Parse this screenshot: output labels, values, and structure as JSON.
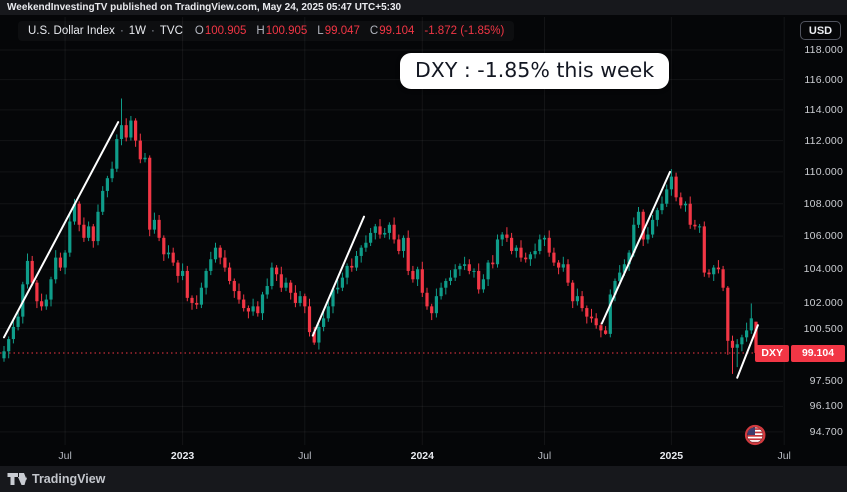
{
  "attribution": "WeekendInvestingTV published on TradingView.com, May 24, 2025 05:47 UTC+5:30",
  "legend": {
    "symbol": "U.S. Dollar Index",
    "sep": "·",
    "interval": "1W",
    "exchange": "TVC",
    "ohlc": [
      [
        "O",
        "100.905"
      ],
      [
        "H",
        "100.905"
      ],
      [
        "L",
        "99.047"
      ],
      [
        "C",
        "99.104"
      ]
    ],
    "change": "-1.872 (-1.85%)"
  },
  "currency_button": "USD",
  "annotation_text": "DXY : -1.85% this week",
  "price_tag": {
    "label": "DXY",
    "value": "99.104"
  },
  "footer_brand": "TradingView",
  "colors": {
    "up": "#0f9d8a",
    "down": "#f23645",
    "trendline": "#ffffff",
    "grid": "rgba(255,255,255,0.06)",
    "last_price_line": "#f23645",
    "axis_text": "#ccced3"
  },
  "chart_data": {
    "type": "candlestick",
    "title": "U.S. Dollar Index",
    "interval": "1W",
    "exchange": "TVC",
    "scale": "log",
    "last_price": 99.104,
    "y_axis_ticks": [
      118,
      116,
      114,
      112,
      110,
      108,
      106,
      104,
      102,
      100.5,
      97.5,
      96.1,
      94.7
    ],
    "x_ticks": [
      {
        "label": "Jul",
        "bar": 13,
        "major": false
      },
      {
        "label": "2023",
        "bar": 38,
        "major": true
      },
      {
        "label": "Jul",
        "bar": 64,
        "major": false
      },
      {
        "label": "2024",
        "bar": 89,
        "major": true
      },
      {
        "label": "Jul",
        "bar": 115,
        "major": false
      },
      {
        "label": "2025",
        "bar": 142,
        "major": true
      },
      {
        "label": "Jul",
        "bar": 166,
        "major": false
      }
    ],
    "bars": [
      [
        98.8,
        99.5,
        98.6,
        99.2
      ],
      [
        99.2,
        100.05,
        98.8,
        99.9
      ],
      [
        99.9,
        101.05,
        99.65,
        100.6
      ],
      [
        100.6,
        101.5,
        100.4,
        101.2
      ],
      [
        101.2,
        103.25,
        100.8,
        103.1
      ],
      [
        103.1,
        104.95,
        102.85,
        104.5
      ],
      [
        104.5,
        104.8,
        103.0,
        103.2
      ],
      [
        103.2,
        103.35,
        101.7,
        102.1
      ],
      [
        102.1,
        102.55,
        101.55,
        101.8
      ],
      [
        101.8,
        102.5,
        101.6,
        102.2
      ],
      [
        102.2,
        103.55,
        101.8,
        103.4
      ],
      [
        103.4,
        105.15,
        103.15,
        104.7
      ],
      [
        104.7,
        105.0,
        103.9,
        104.1
      ],
      [
        104.1,
        105.15,
        103.7,
        105.0
      ],
      [
        105.0,
        107.35,
        104.75,
        106.9
      ],
      [
        106.9,
        108.3,
        106.7,
        108.0
      ],
      [
        108.0,
        108.15,
        106.3,
        106.7
      ],
      [
        106.7,
        107.15,
        105.65,
        105.9
      ],
      [
        105.9,
        106.9,
        105.7,
        106.6
      ],
      [
        106.6,
        106.75,
        105.3,
        105.7
      ],
      [
        105.7,
        107.95,
        105.45,
        107.5
      ],
      [
        107.5,
        109.1,
        107.3,
        108.8
      ],
      [
        108.8,
        109.75,
        108.4,
        109.6
      ],
      [
        109.6,
        110.65,
        109.35,
        110.2
      ],
      [
        110.2,
        112.4,
        110.0,
        112.1
      ],
      [
        112.1,
        114.75,
        111.7,
        113.0
      ],
      [
        113.0,
        113.45,
        111.95,
        112.2
      ],
      [
        112.2,
        113.6,
        112.0,
        113.3
      ],
      [
        113.3,
        113.45,
        111.6,
        112.0
      ],
      [
        112.0,
        112.45,
        110.55,
        110.8
      ],
      [
        110.8,
        111.2,
        110.6,
        110.9
      ],
      [
        110.9,
        111.05,
        106.0,
        106.4
      ],
      [
        106.4,
        107.45,
        106.15,
        107.0
      ],
      [
        107.0,
        107.3,
        105.7,
        105.9
      ],
      [
        105.9,
        106.05,
        104.5,
        104.9
      ],
      [
        104.9,
        105.45,
        104.65,
        105.0
      ],
      [
        105.0,
        105.3,
        104.2,
        104.4
      ],
      [
        104.4,
        104.55,
        103.2,
        103.6
      ],
      [
        103.6,
        104.35,
        103.35,
        103.9
      ],
      [
        103.9,
        104.2,
        102.1,
        102.3
      ],
      [
        102.3,
        102.45,
        101.6,
        102.0
      ],
      [
        102.0,
        102.45,
        101.65,
        101.9
      ],
      [
        101.9,
        103.2,
        101.7,
        102.9
      ],
      [
        102.9,
        104.05,
        102.5,
        103.9
      ],
      [
        103.9,
        105.05,
        103.65,
        104.6
      ],
      [
        104.6,
        105.6,
        104.4,
        105.3
      ],
      [
        105.3,
        105.45,
        104.3,
        104.7
      ],
      [
        104.7,
        105.15,
        103.85,
        104.1
      ],
      [
        104.1,
        104.4,
        103.1,
        103.3
      ],
      [
        103.3,
        103.45,
        102.3,
        102.7
      ],
      [
        102.7,
        103.15,
        101.95,
        102.2
      ],
      [
        102.2,
        102.5,
        101.5,
        101.7
      ],
      [
        101.7,
        101.85,
        101.1,
        101.5
      ],
      [
        101.5,
        102.25,
        101.25,
        101.8
      ],
      [
        101.8,
        102.1,
        101.2,
        101.4
      ],
      [
        101.4,
        102.65,
        101.0,
        102.5
      ],
      [
        102.5,
        103.45,
        102.25,
        103.0
      ],
      [
        103.0,
        104.4,
        102.8,
        104.1
      ],
      [
        104.1,
        104.25,
        103.3,
        103.7
      ],
      [
        103.7,
        104.15,
        102.65,
        102.9
      ],
      [
        102.9,
        103.5,
        102.7,
        103.2
      ],
      [
        103.2,
        103.35,
        102.2,
        102.6
      ],
      [
        102.6,
        103.05,
        101.75,
        102.0
      ],
      [
        102.0,
        102.7,
        101.8,
        102.4
      ],
      [
        102.4,
        102.55,
        101.4,
        101.8
      ],
      [
        101.8,
        102.25,
        100.05,
        100.3
      ],
      [
        100.3,
        100.6,
        99.57,
        99.7
      ],
      [
        99.7,
        100.75,
        99.3,
        100.6
      ],
      [
        100.6,
        101.55,
        100.35,
        101.1
      ],
      [
        101.1,
        102.1,
        100.9,
        101.8
      ],
      [
        101.8,
        102.95,
        101.4,
        102.8
      ],
      [
        102.8,
        103.35,
        102.55,
        102.9
      ],
      [
        102.9,
        103.8,
        102.7,
        103.5
      ],
      [
        103.5,
        104.35,
        103.1,
        104.2
      ],
      [
        104.2,
        104.65,
        103.85,
        104.1
      ],
      [
        104.1,
        105.1,
        103.9,
        104.8
      ],
      [
        104.8,
        105.45,
        104.4,
        105.3
      ],
      [
        105.3,
        106.05,
        105.05,
        105.6
      ],
      [
        105.6,
        106.5,
        105.4,
        106.2
      ],
      [
        106.2,
        106.75,
        105.8,
        106.6
      ],
      [
        106.6,
        107.05,
        105.85,
        106.1
      ],
      [
        106.1,
        106.5,
        105.9,
        106.2
      ],
      [
        106.2,
        106.85,
        105.8,
        106.7
      ],
      [
        106.7,
        107.15,
        105.55,
        105.8
      ],
      [
        105.8,
        106.1,
        104.9,
        105.1
      ],
      [
        105.1,
        106.05,
        104.7,
        105.9
      ],
      [
        105.9,
        106.35,
        103.65,
        103.9
      ],
      [
        103.9,
        104.2,
        103.2,
        103.4
      ],
      [
        103.4,
        104.15,
        103.0,
        104.0
      ],
      [
        104.0,
        104.45,
        102.35,
        102.6
      ],
      [
        102.6,
        102.9,
        101.6,
        101.8
      ],
      [
        101.8,
        101.95,
        101.0,
        101.4
      ],
      [
        101.4,
        102.85,
        101.15,
        102.4
      ],
      [
        102.4,
        103.2,
        102.2,
        102.9
      ],
      [
        102.9,
        103.45,
        102.5,
        103.3
      ],
      [
        103.3,
        103.95,
        103.05,
        103.5
      ],
      [
        103.5,
        104.3,
        103.3,
        104.0
      ],
      [
        104.0,
        104.35,
        103.6,
        104.2
      ],
      [
        104.2,
        104.75,
        103.95,
        104.3
      ],
      [
        104.3,
        104.6,
        103.7,
        103.9
      ],
      [
        103.9,
        104.05,
        103.5,
        103.9
      ],
      [
        103.9,
        104.35,
        102.55,
        102.8
      ],
      [
        102.8,
        103.7,
        102.6,
        103.4
      ],
      [
        103.4,
        104.55,
        103.0,
        104.4
      ],
      [
        104.4,
        104.85,
        104.05,
        104.3
      ],
      [
        104.3,
        106.1,
        104.1,
        105.8
      ],
      [
        105.8,
        106.25,
        105.4,
        106.1
      ],
      [
        106.1,
        106.55,
        105.65,
        105.9
      ],
      [
        105.9,
        106.2,
        104.9,
        105.1
      ],
      [
        105.1,
        105.45,
        104.7,
        105.3
      ],
      [
        105.3,
        105.75,
        104.45,
        104.7
      ],
      [
        104.7,
        105.0,
        104.4,
        104.6
      ],
      [
        104.6,
        105.05,
        104.2,
        104.9
      ],
      [
        104.9,
        105.55,
        104.65,
        105.1
      ],
      [
        105.1,
        106.1,
        104.9,
        105.8
      ],
      [
        105.8,
        106.05,
        105.4,
        105.9
      ],
      [
        105.9,
        106.35,
        104.75,
        105.0
      ],
      [
        105.0,
        105.3,
        104.2,
        104.4
      ],
      [
        104.4,
        104.55,
        103.7,
        104.1
      ],
      [
        104.1,
        104.75,
        103.85,
        104.3
      ],
      [
        104.3,
        104.6,
        103.0,
        103.2
      ],
      [
        103.2,
        103.35,
        101.7,
        102.1
      ],
      [
        102.1,
        102.85,
        101.85,
        102.4
      ],
      [
        102.4,
        102.7,
        101.5,
        101.7
      ],
      [
        101.7,
        101.85,
        100.8,
        101.2
      ],
      [
        101.2,
        101.65,
        100.85,
        101.1
      ],
      [
        101.1,
        101.4,
        100.5,
        100.7
      ],
      [
        100.7,
        100.85,
        100.0,
        100.4
      ],
      [
        100.4,
        100.65,
        100.15,
        100.2
      ],
      [
        100.2,
        102.8,
        100.0,
        102.5
      ],
      [
        102.5,
        103.45,
        102.1,
        103.3
      ],
      [
        103.3,
        104.25,
        103.05,
        103.8
      ],
      [
        103.8,
        104.6,
        103.6,
        104.3
      ],
      [
        104.3,
        105.15,
        103.9,
        105.0
      ],
      [
        105.0,
        107.15,
        104.75,
        106.7
      ],
      [
        106.7,
        107.8,
        106.5,
        107.5
      ],
      [
        107.5,
        107.65,
        105.4,
        105.8
      ],
      [
        105.8,
        106.55,
        105.55,
        106.1
      ],
      [
        106.1,
        107.3,
        105.9,
        107.0
      ],
      [
        107.0,
        107.75,
        106.6,
        107.6
      ],
      [
        107.6,
        108.45,
        107.35,
        108.0
      ],
      [
        108.0,
        109.2,
        107.8,
        108.9
      ],
      [
        108.9,
        110.18,
        108.5,
        109.7
      ],
      [
        109.7,
        109.95,
        108.15,
        108.4
      ],
      [
        108.4,
        108.7,
        107.7,
        107.9
      ],
      [
        107.9,
        108.15,
        107.5,
        108.0
      ],
      [
        108.0,
        108.45,
        106.45,
        106.7
      ],
      [
        106.7,
        107.0,
        106.4,
        106.6
      ],
      [
        106.6,
        106.75,
        106.2,
        106.6
      ],
      [
        106.6,
        106.9,
        103.55,
        103.8
      ],
      [
        103.8,
        104.0,
        103.5,
        103.7
      ],
      [
        103.7,
        104.25,
        103.3,
        104.1
      ],
      [
        104.1,
        104.55,
        103.75,
        104.0
      ],
      [
        104.0,
        104.2,
        102.7,
        102.9
      ],
      [
        102.9,
        103.0,
        99.0,
        99.8
      ],
      [
        99.8,
        100.1,
        97.92,
        99.4
      ],
      [
        99.4,
        99.9,
        98.3,
        99.6
      ],
      [
        99.6,
        100.15,
        99.2,
        100.0
      ],
      [
        100.0,
        100.85,
        99.75,
        100.4
      ],
      [
        100.4,
        101.97,
        100.2,
        101.1
      ],
      [
        100.905,
        100.905,
        99.047,
        99.104
      ]
    ],
    "trendlines": [
      {
        "from": [
          0,
          100.0
        ],
        "to": [
          24.3,
          113.2
        ]
      },
      {
        "from": [
          65.7,
          100.1
        ],
        "to": [
          76.6,
          107.2
        ]
      },
      {
        "from": [
          127.2,
          100.8
        ],
        "to": [
          141.7,
          110.0
        ]
      },
      {
        "from": [
          156.0,
          97.7
        ],
        "to": [
          160.4,
          100.7
        ]
      }
    ]
  }
}
